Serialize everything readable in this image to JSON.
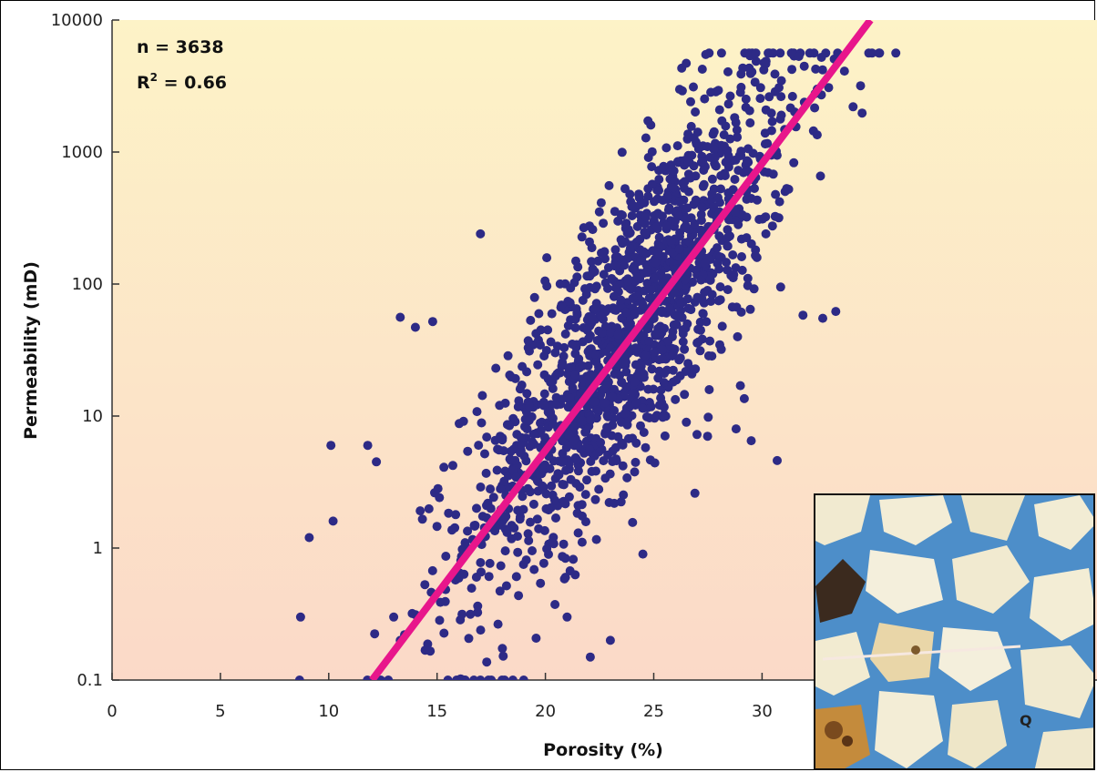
{
  "chart_data": {
    "type": "scatter",
    "xlabel": "Porosity (%)",
    "ylabel": "Permeability (mD)",
    "xlim": [
      0,
      35
    ],
    "ylim": [
      0.1,
      10000
    ],
    "y_scale": "log",
    "x_ticks": [
      "0",
      "5",
      "10",
      "15",
      "20",
      "25",
      "30"
    ],
    "y_ticks": [
      "0.1",
      "1",
      "10",
      "100",
      "1000",
      "10000"
    ],
    "annotations": [
      "n = 3638",
      "R² = 0.66"
    ],
    "n": 3638,
    "r_squared": 0.66,
    "trendline": {
      "x": [
        12.0,
        35.0
      ],
      "y": [
        0.1,
        10000
      ],
      "color": "#e8168b"
    },
    "point_color": "#2d2a86",
    "background_gradient": [
      "#fdf3c7",
      "#fbd9c8"
    ],
    "grid": false,
    "cluster": {
      "x_mean": 24,
      "x_sd": 3.8,
      "log10_y_mean": 1.7,
      "log10_y_sd": 0.65
    },
    "series": [
      {
        "x": [
          8.7,
          9.1,
          10.1,
          10.2,
          11.8,
          12.2,
          12.4,
          13.0,
          13.3,
          14.0,
          14.8,
          15.5,
          15.9,
          16.3,
          16.7,
          17.0,
          17.5,
          18.0,
          18.5,
          19.0,
          21.0,
          23.0,
          17.0,
          13.3,
          24.5,
          26.5,
          31.7,
          33.8,
          34.2,
          30.7,
          29.5,
          26.9,
          28.8,
          29.0,
          32.8,
          33.4,
          20.8
        ],
        "y": [
          0.3,
          1.2,
          6,
          1.6,
          6,
          4.5,
          0.1,
          0.3,
          56,
          47,
          52,
          0.1,
          0.1,
          0.1,
          0.1,
          0.1,
          0.1,
          0.1,
          0.1,
          0.1,
          0.3,
          0.2,
          240,
          0.2,
          0.9,
          4700,
          5300,
          4100,
          2200,
          4.6,
          6.5,
          2.6,
          8,
          17,
          55,
          62,
          4.5
        ]
      }
    ]
  },
  "inset": {
    "label": "Q",
    "description_colors": {
      "pore": "#4d8ec9",
      "grain": "#f1ead0",
      "dark": "#3b2a1e"
    }
  }
}
